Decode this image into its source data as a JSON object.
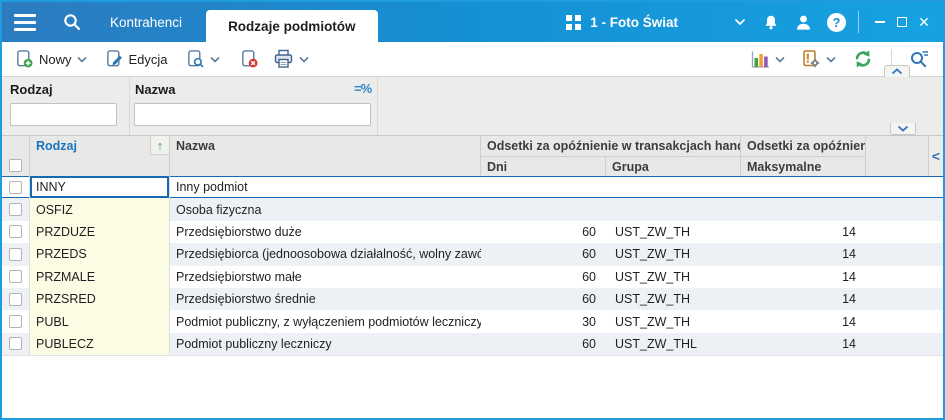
{
  "window": {
    "tabs": [
      {
        "label": "Kontrahenci",
        "active": false
      },
      {
        "label": "Rodzaje podmiotów",
        "active": true
      }
    ],
    "workspace": "1 - Foto Świat"
  },
  "toolbar": {
    "new_label": "Nowy",
    "edit_label": "Edycja"
  },
  "filters": {
    "rodzaj_label": "Rodzaj",
    "nazwa_label": "Nazwa",
    "operator": "=%",
    "rodzaj_value": "",
    "nazwa_value": ""
  },
  "grid": {
    "header": {
      "rodzaj": "Rodzaj",
      "nazwa": "Nazwa",
      "sort_arrow": "↑",
      "group_trade": "Odsetki za opóźnienie w transakcjach handlowych",
      "group_late": "Odsetki za opóźnienie",
      "dni": "Dni",
      "grupa": "Grupa",
      "maksymalne": "Maksymalne",
      "collapse_glyph": "<"
    },
    "rows": [
      {
        "rodzaj": "INNY",
        "nazwa": "Inny podmiot",
        "dni": "",
        "grupa": "",
        "maksymalne": "",
        "selected": true
      },
      {
        "rodzaj": "OSFIZ",
        "nazwa": "Osoba fizyczna",
        "dni": "",
        "grupa": "",
        "maksymalne": ""
      },
      {
        "rodzaj": "PRZDUZE",
        "nazwa": "Przedsiębiorstwo duże",
        "dni": "60",
        "grupa": "UST_ZW_TH",
        "maksymalne": "14"
      },
      {
        "rodzaj": "PRZEDS",
        "nazwa": "Przedsiębiorca (jednoosobowa działalność, wolny zawód)",
        "dni": "60",
        "grupa": "UST_ZW_TH",
        "maksymalne": "14"
      },
      {
        "rodzaj": "PRZMALE",
        "nazwa": "Przedsiębiorstwo małe",
        "dni": "60",
        "grupa": "UST_ZW_TH",
        "maksymalne": "14"
      },
      {
        "rodzaj": "PRZSRED",
        "nazwa": "Przedsiębiorstwo średnie",
        "dni": "60",
        "grupa": "UST_ZW_TH",
        "maksymalne": "14"
      },
      {
        "rodzaj": "PUBL",
        "nazwa": "Podmiot publiczny, z wyłączeniem podmiotów leczniczych",
        "dni": "30",
        "grupa": "UST_ZW_TH",
        "maksymalne": "14"
      },
      {
        "rodzaj": "PUBLECZ",
        "nazwa": "Podmiot publiczny leczniczy",
        "dni": "60",
        "grupa": "UST_ZW_THL",
        "maksymalne": "14"
      }
    ]
  },
  "colors": {
    "titlebar_left": "#2d7bbf",
    "titlebar_right": "#16a2e2",
    "window_border": "#1e9cdd",
    "accent_blue": "#1b75bc",
    "selection_blue": "#1669b3",
    "row_alt": "#edf1f6",
    "rodzaj_column_bg": "#fcfbe4",
    "sort_arrow_green": "#2fa156"
  }
}
